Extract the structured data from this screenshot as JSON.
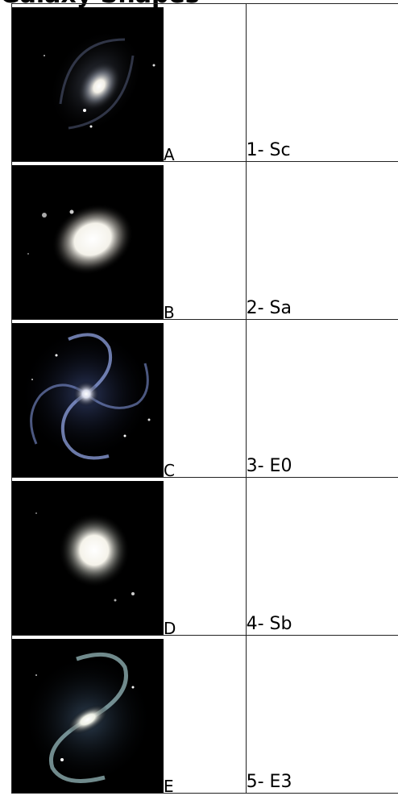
{
  "heading_fragment": "Galaxy Shapes",
  "rows": [
    {
      "letter": "A",
      "label": "1- Sc",
      "image_icon": "spiral-galaxy-large-bulge-icon"
    },
    {
      "letter": "B",
      "label": "2- Sa",
      "image_icon": "elliptical-galaxy-oval-icon"
    },
    {
      "letter": "C",
      "label": "3- E0",
      "image_icon": "spiral-galaxy-open-arms-icon"
    },
    {
      "letter": "D",
      "label": "4- Sb",
      "image_icon": "elliptical-galaxy-round-icon"
    },
    {
      "letter": "E",
      "label": "5- E3",
      "image_icon": "barred-spiral-galaxy-icon"
    }
  ]
}
